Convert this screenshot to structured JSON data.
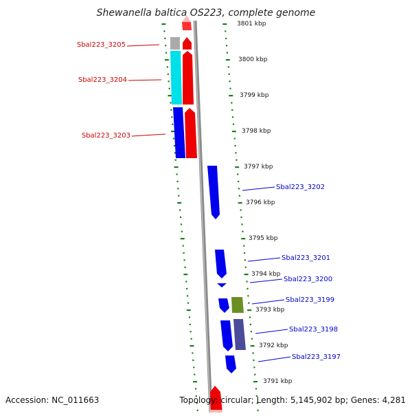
{
  "title": "Shewanella baltica OS223, complete genome",
  "footer": {
    "accession": "Accession: NC_011663",
    "topology": "Topology: circular; Length: 5,145,902 bp; Genes: 4,281"
  },
  "colors": {
    "forward_label": "#cc0000",
    "reverse_label": "#0000cc",
    "tick": "#1a7f1a",
    "axis": "#7a7a7a"
  },
  "kbp_marks": [
    "3801 kbp",
    "3800 kbp",
    "3799 kbp",
    "3798 kbp",
    "3797 kbp",
    "3796 kbp",
    "3795 kbp",
    "3794 kbp",
    "3793 kbp",
    "3792 kbp",
    "3791 kbp"
  ],
  "genes": [
    {
      "id": "sbal223_3205",
      "label": "Sbal223_3205",
      "strand": "forward",
      "color": "#aaaaaa"
    },
    {
      "id": "sbal223_3204",
      "label": "Sbal223_3204",
      "strand": "forward",
      "color": "#00e0e8"
    },
    {
      "id": "sbal223_3203",
      "label": "Sbal223_3203",
      "strand": "forward",
      "color": "#0000ee"
    },
    {
      "id": "sbal223_3202",
      "label": "Sbal223_3202",
      "strand": "reverse",
      "color": "#0000ee"
    },
    {
      "id": "sbal223_3201",
      "label": "Sbal223_3201",
      "strand": "reverse",
      "color": "#0000ee"
    },
    {
      "id": "sbal223_3200",
      "label": "Sbal223_3200",
      "strand": "reverse",
      "color": "#0000ee"
    },
    {
      "id": "sbal223_3199",
      "label": "Sbal223_3199",
      "strand": "reverse",
      "color": "#0000ee"
    },
    {
      "id": "sbal223_3198",
      "label": "Sbal223_3198",
      "strand": "reverse",
      "color": "#0000ee"
    },
    {
      "id": "sbal223_3197",
      "label": "Sbal223_3197",
      "strand": "reverse",
      "color": "#0000ee"
    }
  ]
}
